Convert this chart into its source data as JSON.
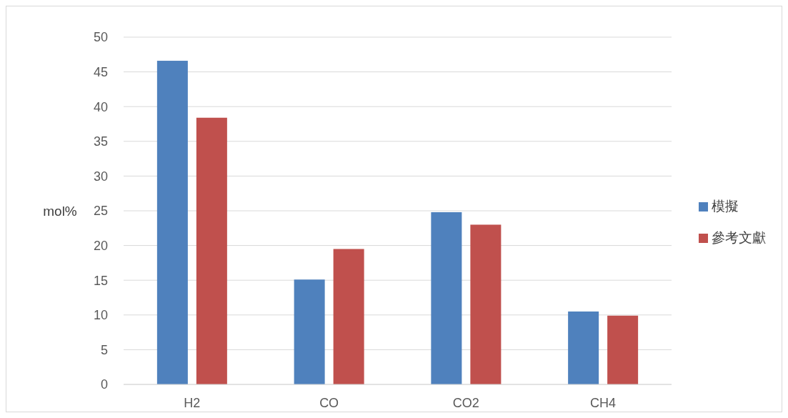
{
  "chart_data": {
    "type": "bar",
    "ylabel": "mol%",
    "categories": [
      "H2",
      "CO",
      "CO2",
      "CH4"
    ],
    "series": [
      {
        "name": "模擬",
        "color": "#4f81bd",
        "values": [
          46.6,
          15.1,
          24.8,
          10.5
        ]
      },
      {
        "name": "參考文獻",
        "color": "#c0504d",
        "values": [
          38.4,
          19.5,
          23.0,
          9.9
        ]
      }
    ],
    "ylim": [
      0,
      50
    ],
    "yticks": [
      0,
      5,
      10,
      15,
      20,
      25,
      30,
      35,
      40,
      45,
      50
    ],
    "grid": "y",
    "legend": "right"
  }
}
